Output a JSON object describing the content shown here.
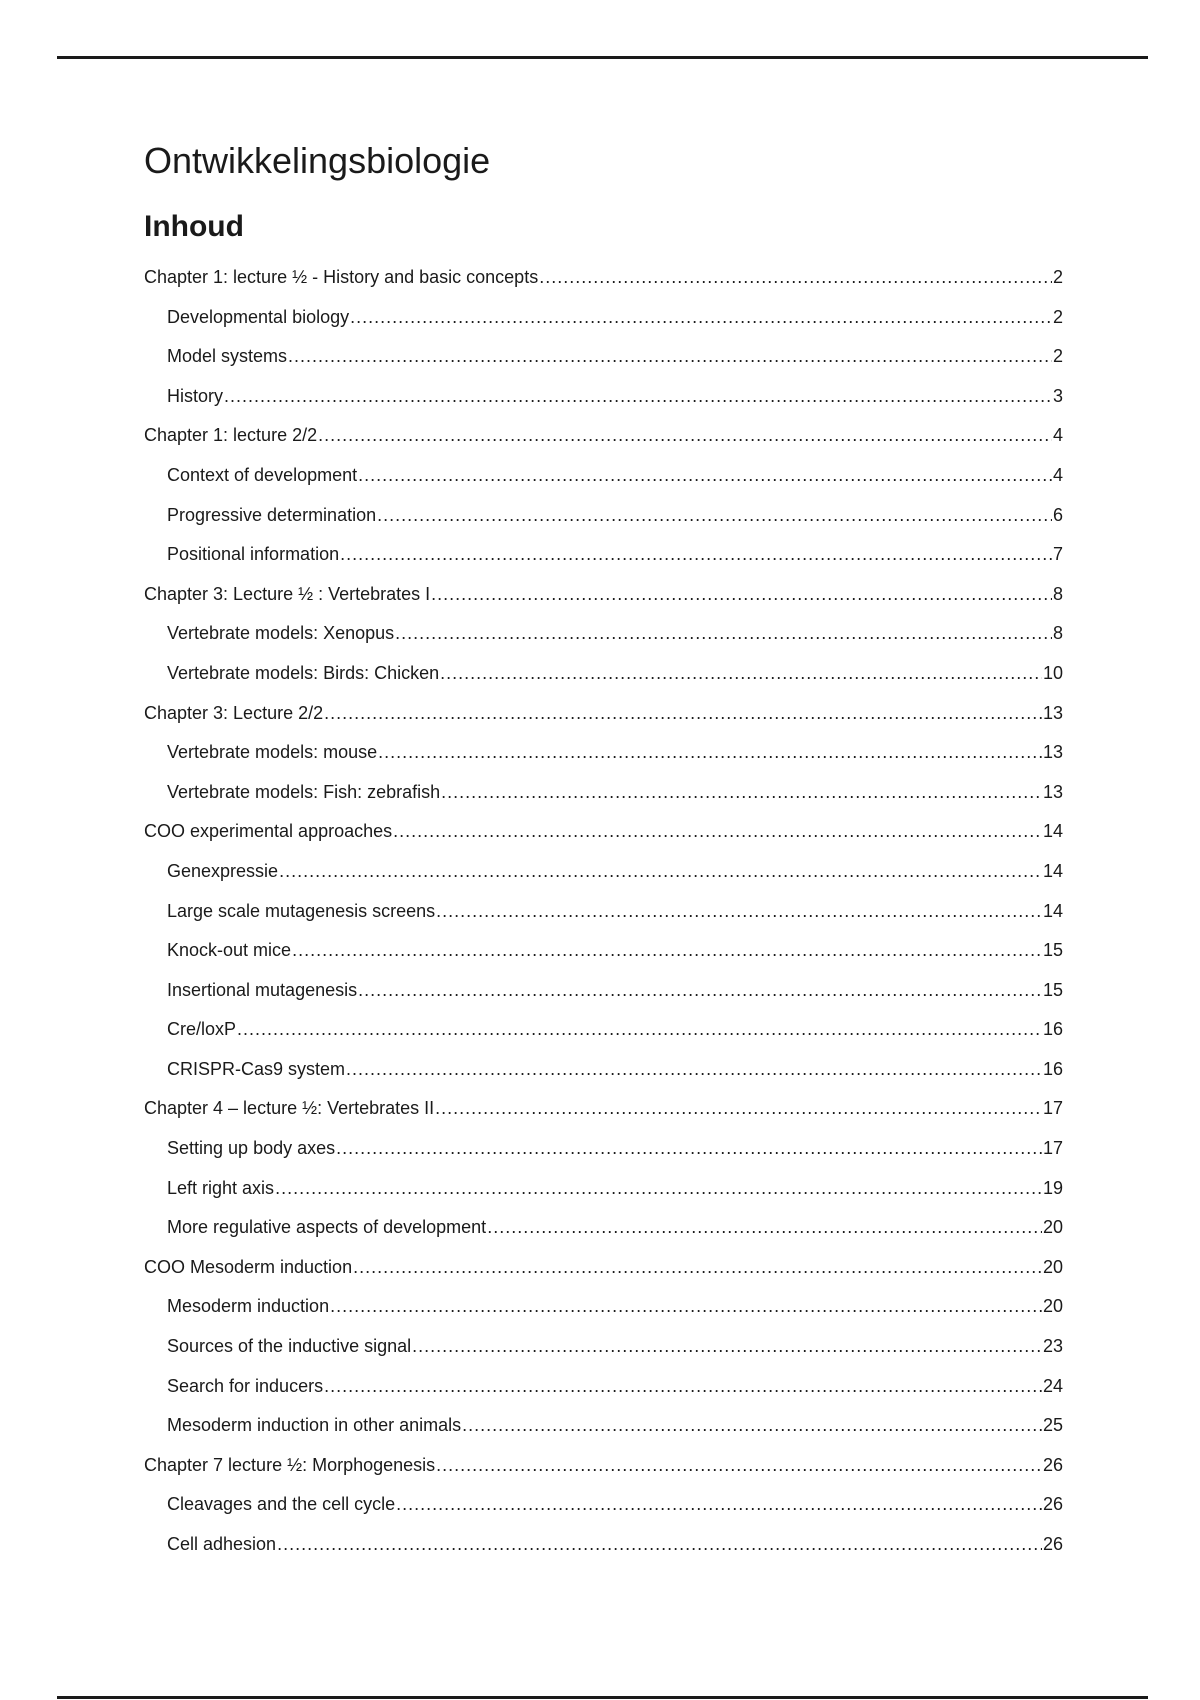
{
  "document": {
    "title": "Ontwikkelingsbiologie",
    "toc_heading": "Inhoud",
    "toc": [
      {
        "label": "Chapter 1: lecture ½ - History and basic concepts",
        "page": "2",
        "level": 1
      },
      {
        "label": "Developmental biology",
        "page": "2",
        "level": 2
      },
      {
        "label": "Model systems",
        "page": "2",
        "level": 2
      },
      {
        "label": "History",
        "page": "3",
        "level": 2
      },
      {
        "label": "Chapter 1: lecture 2/2",
        "page": "4",
        "level": 1
      },
      {
        "label": "Context of development",
        "page": "4",
        "level": 2
      },
      {
        "label": "Progressive determination",
        "page": "6",
        "level": 2
      },
      {
        "label": "Positional information",
        "page": "7",
        "level": 2
      },
      {
        "label": "Chapter 3: Lecture ½ : Vertebrates I",
        "page": "8",
        "level": 1
      },
      {
        "label": "Vertebrate models: Xenopus",
        "page": "8",
        "level": 2
      },
      {
        "label": "Vertebrate models: Birds: Chicken",
        "page": "10",
        "level": 2
      },
      {
        "label": "Chapter 3: Lecture 2/2",
        "page": "13",
        "level": 1
      },
      {
        "label": "Vertebrate models: mouse",
        "page": "13",
        "level": 2
      },
      {
        "label": "Vertebrate models: Fish: zebrafish",
        "page": "13",
        "level": 2
      },
      {
        "label": "COO experimental approaches",
        "page": "14",
        "level": 1
      },
      {
        "label": "Genexpressie",
        "page": "14",
        "level": 2
      },
      {
        "label": "Large scale mutagenesis screens",
        "page": "14",
        "level": 2
      },
      {
        "label": "Knock-out mice",
        "page": "15",
        "level": 2
      },
      {
        "label": "Insertional mutagenesis",
        "page": "15",
        "level": 2
      },
      {
        "label": "Cre/loxP",
        "page": "16",
        "level": 2
      },
      {
        "label": "CRISPR-Cas9 system",
        "page": "16",
        "level": 2
      },
      {
        "label": "Chapter 4 – lecture ½: Vertebrates II",
        "page": "17",
        "level": 1
      },
      {
        "label": "Setting up body axes",
        "page": "17",
        "level": 2
      },
      {
        "label": "Left right axis",
        "page": "19",
        "level": 2
      },
      {
        "label": "More regulative aspects of development",
        "page": "20",
        "level": 2
      },
      {
        "label": "COO Mesoderm induction",
        "page": "20",
        "level": 1
      },
      {
        "label": "Mesoderm induction",
        "page": "20",
        "level": 2
      },
      {
        "label": "Sources of the inductive signal",
        "page": "23",
        "level": 2
      },
      {
        "label": "Search for inducers",
        "page": "24",
        "level": 2
      },
      {
        "label": "Mesoderm induction in other animals",
        "page": "25",
        "level": 2
      },
      {
        "label": "Chapter 7 lecture ½: Morphogenesis",
        "page": "26",
        "level": 1
      },
      {
        "label": "Cleavages and the cell cycle",
        "page": "26",
        "level": 2
      },
      {
        "label": "Cell adhesion",
        "page": "26",
        "level": 2
      }
    ]
  }
}
